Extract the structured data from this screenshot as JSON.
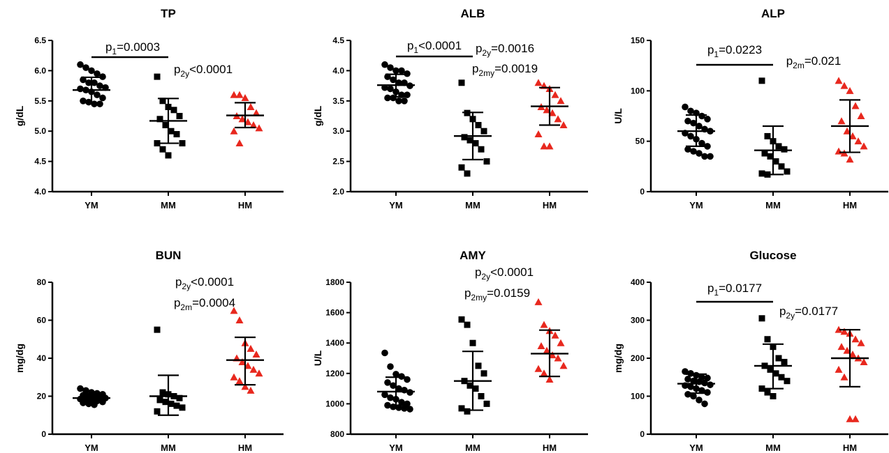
{
  "figure": {
    "categories": [
      "YM",
      "MM",
      "HM"
    ],
    "colors": {
      "YM": "#000000",
      "MM": "#000000",
      "HM": "#e8281e"
    },
    "markers": {
      "YM": "circle",
      "MM": "square",
      "HM": "triangle"
    }
  },
  "chart_data": [
    {
      "type": "scatter",
      "title": "TP",
      "ylabel": "g/dL",
      "ylim": [
        4.0,
        6.5
      ],
      "yticks": [
        "4.0",
        "4.5",
        "5.0",
        "5.5",
        "6.0",
        "6.5"
      ],
      "categories": [
        "YM",
        "MM",
        "HM"
      ],
      "series": [
        {
          "category": "YM",
          "mean": 5.68,
          "sd_low": 5.47,
          "sd_high": 5.89,
          "values": [
            6.1,
            6.05,
            6.0,
            5.95,
            5.9,
            5.85,
            5.8,
            5.8,
            5.75,
            5.72,
            5.7,
            5.68,
            5.65,
            5.6,
            5.55,
            5.5,
            5.48,
            5.45,
            5.45
          ]
        },
        {
          "category": "MM",
          "mean": 5.17,
          "sd_low": 4.8,
          "sd_high": 5.54,
          "values": [
            5.9,
            5.5,
            5.4,
            5.35,
            5.25,
            5.2,
            5.1,
            5.0,
            4.95,
            4.8,
            4.8,
            4.7,
            4.6
          ]
        },
        {
          "category": "HM",
          "mean": 5.26,
          "sd_low": 5.06,
          "sd_high": 5.47,
          "values": [
            5.6,
            5.6,
            5.55,
            5.4,
            5.3,
            5.25,
            5.2,
            5.15,
            5.1,
            5.05,
            5.0,
            4.8
          ]
        }
      ],
      "annotations": [
        {
          "parts": [
            [
              "p",
              ""
            ],
            [
              "1",
              "sub"
            ],
            [
              "=0.0003",
              ""
            ]
          ],
          "bracket": [
            "YM",
            "MM"
          ]
        },
        {
          "parts": [
            [
              "p",
              ""
            ],
            [
              "2y",
              "sub"
            ],
            [
              "<0.0001",
              ""
            ]
          ]
        }
      ]
    },
    {
      "type": "scatter",
      "title": "ALB",
      "ylabel": "g/dL",
      "ylim": [
        2.0,
        4.5
      ],
      "yticks": [
        "2.0",
        "2.5",
        "3.0",
        "3.5",
        "4.0",
        "4.5"
      ],
      "categories": [
        "YM",
        "MM",
        "HM"
      ],
      "series": [
        {
          "category": "YM",
          "mean": 3.76,
          "sd_low": 3.57,
          "sd_high": 3.94,
          "values": [
            4.1,
            4.05,
            4.0,
            4.0,
            3.95,
            3.9,
            3.85,
            3.8,
            3.8,
            3.75,
            3.72,
            3.7,
            3.65,
            3.6,
            3.6,
            3.55,
            3.55,
            3.5,
            3.5
          ]
        },
        {
          "category": "MM",
          "mean": 2.92,
          "sd_low": 2.53,
          "sd_high": 3.31,
          "values": [
            3.8,
            3.3,
            3.2,
            3.1,
            3.0,
            2.9,
            2.85,
            2.8,
            2.7,
            2.5,
            2.4,
            2.3
          ]
        },
        {
          "category": "HM",
          "mean": 3.41,
          "sd_low": 3.1,
          "sd_high": 3.72,
          "values": [
            3.8,
            3.75,
            3.7,
            3.6,
            3.5,
            3.4,
            3.35,
            3.3,
            3.2,
            3.1,
            2.95,
            2.75,
            2.75
          ]
        }
      ],
      "annotations": [
        {
          "parts": [
            [
              "p",
              ""
            ],
            [
              "1",
              "sub"
            ],
            [
              "<0.0001",
              ""
            ]
          ],
          "bracket": [
            "YM",
            "MM"
          ]
        },
        {
          "parts": [
            [
              "p",
              ""
            ],
            [
              "2y",
              "sub"
            ],
            [
              "=0.0016",
              ""
            ]
          ]
        },
        {
          "parts": [
            [
              "p",
              ""
            ],
            [
              "2my",
              "sub"
            ],
            [
              "=0.0019",
              ""
            ]
          ]
        }
      ]
    },
    {
      "type": "scatter",
      "title": "ALP",
      "ylabel": "U/L",
      "ylim": [
        0,
        150
      ],
      "yticks": [
        "0",
        "50",
        "100",
        "150"
      ],
      "categories": [
        "YM",
        "MM",
        "HM"
      ],
      "series": [
        {
          "category": "YM",
          "mean": 60,
          "sd_low": 45,
          "sd_high": 76,
          "values": [
            84,
            80,
            78,
            75,
            72,
            70,
            68,
            65,
            62,
            60,
            58,
            55,
            52,
            48,
            45,
            42,
            40,
            38,
            35,
            35
          ]
        },
        {
          "category": "MM",
          "mean": 41,
          "sd_low": 17,
          "sd_high": 65,
          "values": [
            110,
            55,
            50,
            45,
            42,
            38,
            35,
            30,
            25,
            20,
            18,
            17
          ]
        },
        {
          "category": "HM",
          "mean": 65,
          "sd_low": 39,
          "sd_high": 91,
          "values": [
            110,
            105,
            100,
            85,
            75,
            70,
            60,
            55,
            50,
            45,
            40,
            38,
            32
          ]
        }
      ],
      "annotations": [
        {
          "parts": [
            [
              "p",
              ""
            ],
            [
              "1",
              "sub"
            ],
            [
              "=0.0223",
              ""
            ]
          ],
          "bracket": [
            "YM",
            "MM"
          ]
        },
        {
          "parts": [
            [
              "p",
              ""
            ],
            [
              "2m",
              "sub"
            ],
            [
              "=0.021",
              ""
            ]
          ]
        }
      ]
    },
    {
      "type": "scatter",
      "title": "BUN",
      "ylabel": "mg/dg",
      "ylim": [
        0,
        80
      ],
      "yticks": [
        "0",
        "20",
        "40",
        "60",
        "80"
      ],
      "categories": [
        "YM",
        "MM",
        "HM"
      ],
      "series": [
        {
          "category": "YM",
          "mean": 19,
          "sd_low": 17,
          "sd_high": 21,
          "values": [
            24,
            23,
            22,
            21.5,
            21,
            20.5,
            20,
            20,
            19.5,
            19,
            18.5,
            18,
            18,
            17.5,
            17,
            16.5,
            16,
            15.5
          ]
        },
        {
          "category": "MM",
          "mean": 20,
          "sd_low": 10,
          "sd_high": 31,
          "values": [
            55,
            22,
            21,
            20,
            19,
            18,
            17,
            16,
            15,
            14,
            12
          ]
        },
        {
          "category": "HM",
          "mean": 39,
          "sd_low": 26,
          "sd_high": 51,
          "values": [
            65,
            60,
            48,
            45,
            42,
            40,
            38,
            36,
            34,
            32,
            30,
            28,
            25,
            23
          ]
        }
      ],
      "annotations": [
        {
          "parts": [
            [
              "p",
              ""
            ],
            [
              "2y",
              "sub"
            ],
            [
              "<0.0001",
              ""
            ]
          ]
        },
        {
          "parts": [
            [
              "p",
              ""
            ],
            [
              "2m",
              "sub"
            ],
            [
              "=0.0004",
              ""
            ]
          ]
        }
      ]
    },
    {
      "type": "scatter",
      "title": "AMY",
      "ylabel": "U/L",
      "ylim": [
        800,
        1800
      ],
      "yticks": [
        "800",
        "1000",
        "1200",
        "1400",
        "1600",
        "1800"
      ],
      "categories": [
        "YM",
        "MM",
        "HM"
      ],
      "series": [
        {
          "category": "YM",
          "mean": 1080,
          "sd_low": 990,
          "sd_high": 1175,
          "values": [
            1335,
            1245,
            1195,
            1180,
            1160,
            1140,
            1120,
            1100,
            1090,
            1075,
            1060,
            1040,
            1030,
            1010,
            1000,
            990,
            980,
            975,
            970,
            965
          ]
        },
        {
          "category": "MM",
          "mean": 1150,
          "sd_low": 958,
          "sd_high": 1345,
          "values": [
            1555,
            1520,
            1400,
            1250,
            1200,
            1150,
            1120,
            1100,
            1050,
            1000,
            970,
            950
          ]
        },
        {
          "category": "HM",
          "mean": 1330,
          "sd_low": 1180,
          "sd_high": 1485,
          "values": [
            1670,
            1520,
            1480,
            1450,
            1400,
            1380,
            1350,
            1320,
            1300,
            1250,
            1230,
            1200,
            1160
          ]
        }
      ],
      "annotations": [
        {
          "parts": [
            [
              "p",
              ""
            ],
            [
              "2y",
              "sub"
            ],
            [
              "<0.0001",
              ""
            ]
          ]
        },
        {
          "parts": [
            [
              "p",
              ""
            ],
            [
              "2my",
              "sub"
            ],
            [
              "=0.0159",
              ""
            ]
          ]
        }
      ]
    },
    {
      "type": "scatter",
      "title": "Glucose",
      "ylabel": "mg/dg",
      "ylim": [
        0,
        400
      ],
      "yticks": [
        "0",
        "100",
        "200",
        "300",
        "400"
      ],
      "categories": [
        "YM",
        "MM",
        "HM"
      ],
      "series": [
        {
          "category": "YM",
          "mean": 133,
          "sd_low": 108,
          "sd_high": 158,
          "values": [
            165,
            160,
            155,
            150,
            148,
            145,
            140,
            138,
            135,
            130,
            128,
            125,
            120,
            115,
            110,
            105,
            100,
            90,
            80
          ]
        },
        {
          "category": "MM",
          "mean": 180,
          "sd_low": 120,
          "sd_high": 237,
          "values": [
            305,
            250,
            230,
            200,
            190,
            180,
            170,
            160,
            150,
            140,
            120,
            110,
            100
          ]
        },
        {
          "category": "HM",
          "mean": 200,
          "sd_low": 125,
          "sd_high": 275,
          "values": [
            275,
            270,
            265,
            250,
            240,
            230,
            220,
            210,
            200,
            190,
            170,
            150,
            40,
            40
          ]
        }
      ],
      "annotations": [
        {
          "parts": [
            [
              "p",
              ""
            ],
            [
              "1",
              "sub"
            ],
            [
              "=0.0177",
              ""
            ]
          ],
          "bracket": [
            "YM",
            "MM"
          ]
        },
        {
          "parts": [
            [
              "p",
              ""
            ],
            [
              "2y",
              "sub"
            ],
            [
              "=0.0177",
              ""
            ]
          ]
        }
      ]
    }
  ]
}
